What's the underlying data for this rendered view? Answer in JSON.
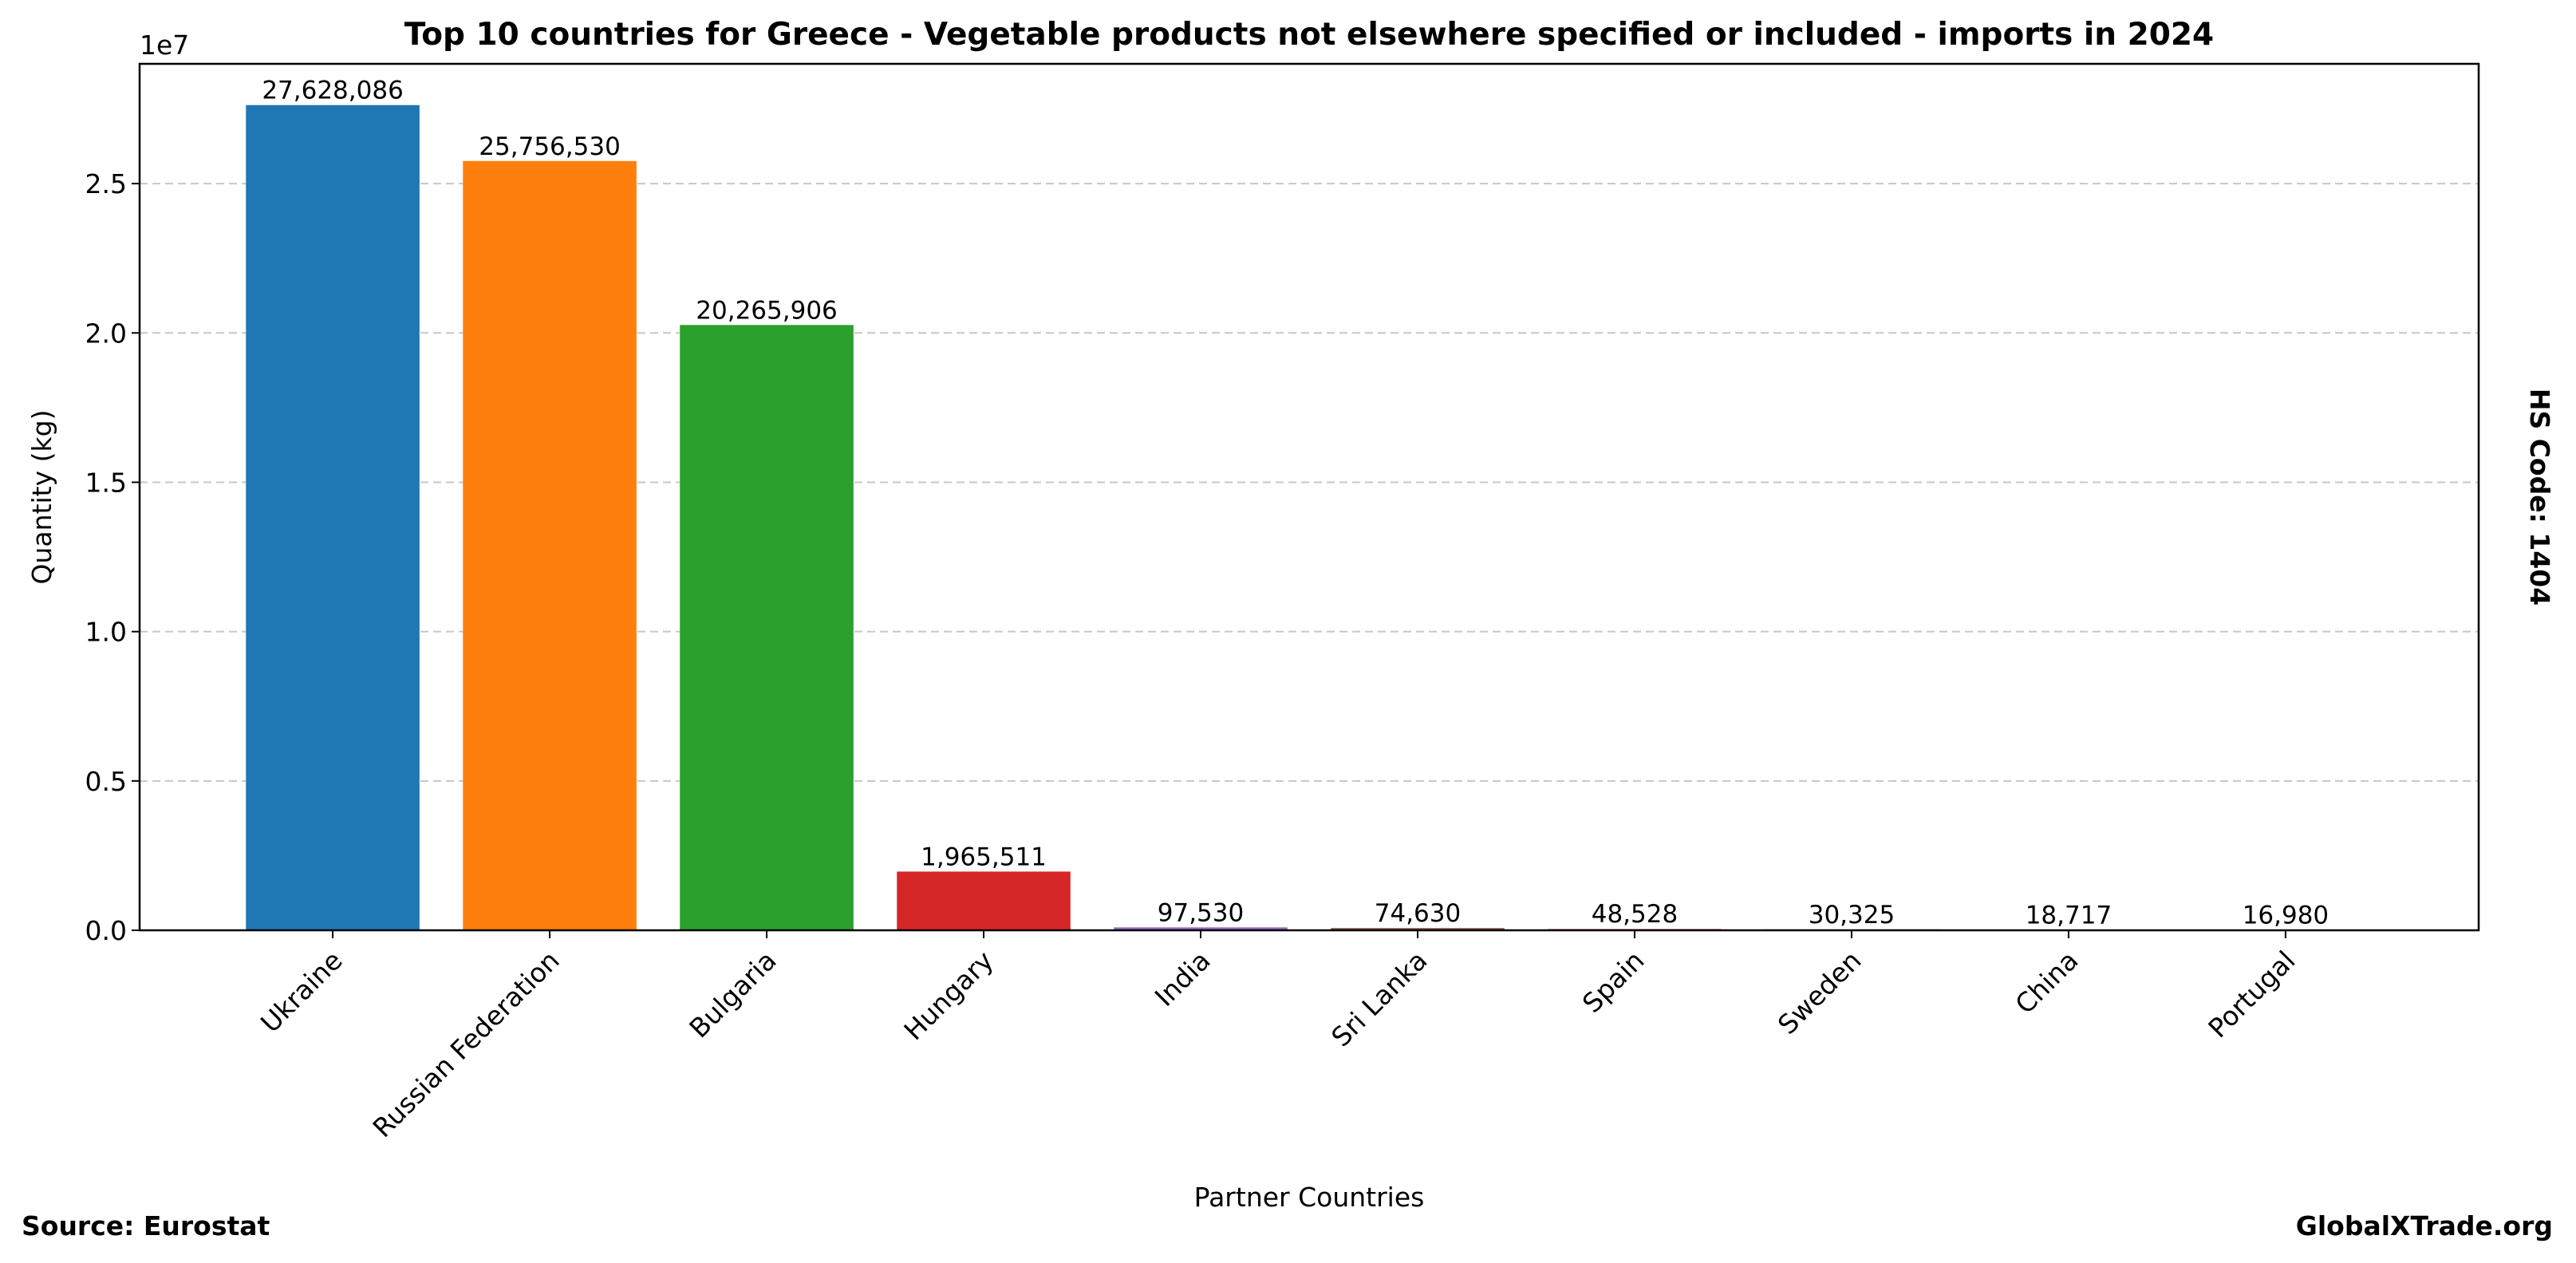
{
  "chart_data": {
    "type": "bar",
    "title": "Top 10 countries for Greece - Vegetable products not elsewhere specified or included - imports in 2024",
    "x_label": "Partner Countries",
    "y_label": "Quantity (kg)",
    "y_offset_label": "1e7",
    "side_label": "HS Code: 1404",
    "source": "Source: Eurostat",
    "brand": "GlobalXTrade.org",
    "categories": [
      "Ukraine",
      "Russian Federation",
      "Bulgaria",
      "Hungary",
      "India",
      "Sri Lanka",
      "Spain",
      "Sweden",
      "China",
      "Portugal"
    ],
    "values": [
      27628086,
      25756530,
      20265906,
      1965511,
      97530,
      74630,
      48528,
      30325,
      18717,
      16980
    ],
    "value_labels": [
      "27,628,086",
      "25,756,530",
      "20,265,906",
      "1,965,511",
      "97,530",
      "74,630",
      "48,528",
      "30,325",
      "18,717",
      "16,980"
    ],
    "colors": [
      "#1f77b4",
      "#ff7f0e",
      "#2ca02c",
      "#d62728",
      "#9467bd",
      "#8c564b",
      "#e377c2",
      "#7f7f7f",
      "#bcbd22",
      "#17becf"
    ],
    "ylim": [
      0,
      29009490
    ],
    "yticks": [
      {
        "value": 0,
        "label": "0.0"
      },
      {
        "value": 5000000,
        "label": "0.5"
      },
      {
        "value": 10000000,
        "label": "1.0"
      },
      {
        "value": 15000000,
        "label": "1.5"
      },
      {
        "value": 20000000,
        "label": "2.0"
      },
      {
        "value": 25000000,
        "label": "2.5"
      }
    ],
    "grid": true
  }
}
